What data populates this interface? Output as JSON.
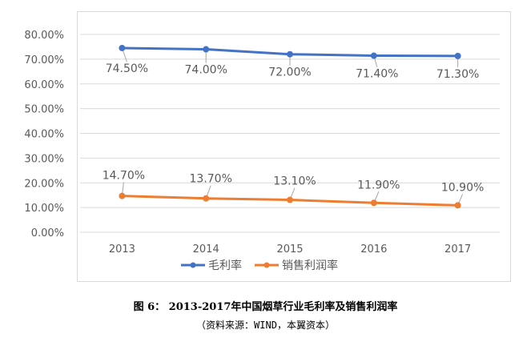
{
  "chart_data": {
    "type": "line",
    "title": "",
    "xlabel": "",
    "ylabel": "",
    "categories": [
      "2013",
      "2014",
      "2015",
      "2016",
      "2017"
    ],
    "ylim": [
      0,
      80
    ],
    "y_ticks": [
      "0.00%",
      "10.00%",
      "20.00%",
      "30.00%",
      "40.00%",
      "50.00%",
      "60.00%",
      "70.00%",
      "80.00%"
    ],
    "grid": true,
    "legend_position": "bottom",
    "series": [
      {
        "name": "毛利率",
        "values": [
          74.5,
          74.0,
          72.0,
          71.4,
          71.3
        ],
        "labels": [
          "74.50%",
          "74.00%",
          "72.00%",
          "71.40%",
          "71.30%"
        ],
        "color": "#4472c4"
      },
      {
        "name": "销售利润率",
        "values": [
          14.7,
          13.7,
          13.1,
          11.9,
          10.9
        ],
        "labels": [
          "14.70%",
          "13.70%",
          "13.10%",
          "11.90%",
          "10.90%"
        ],
        "color": "#ed7d31"
      }
    ]
  },
  "caption": "图 6： 2013-2017年中国烟草行业毛利率及销售利润率",
  "source": "（资料来源：WIND，本翼资本）"
}
